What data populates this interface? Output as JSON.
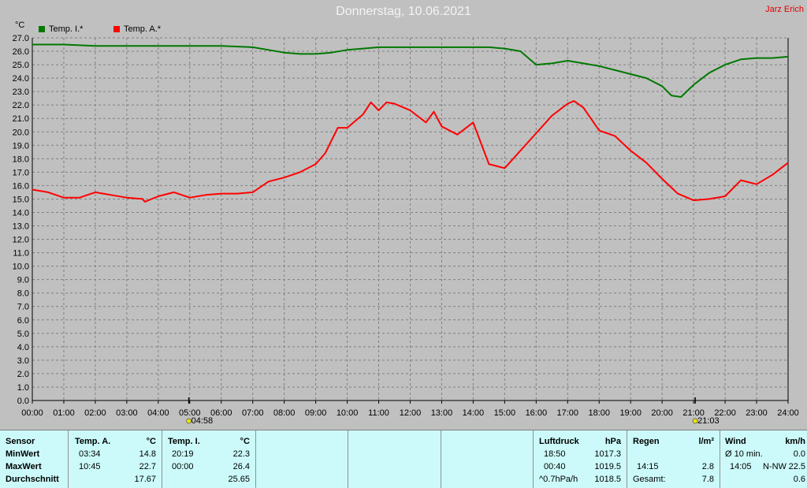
{
  "title": "Donnerstag, 10.06.2021",
  "author": "Jarz Erich",
  "colors": {
    "temp_i": "#007800",
    "temp_a": "#ff0000",
    "plot_bg": "#c0c0c0",
    "grid": "#808080",
    "panel": "#ccfafa"
  },
  "chart_data": {
    "type": "line",
    "unit_label": "°C",
    "ylim": [
      0,
      27
    ],
    "y_ticks": [
      "0.0",
      "1.0",
      "2.0",
      "3.0",
      "4.0",
      "5.0",
      "6.0",
      "7.0",
      "8.0",
      "9.0",
      "10.0",
      "11.0",
      "12.0",
      "13.0",
      "14.0",
      "15.0",
      "16.0",
      "17.0",
      "18.0",
      "19.0",
      "20.0",
      "21.0",
      "22.0",
      "23.0",
      "24.0",
      "25.0",
      "26.0",
      "27.0"
    ],
    "x_ticks": [
      "00:00",
      "01:00",
      "02:00",
      "03:00",
      "04:00",
      "05:00",
      "06:00",
      "07:00",
      "08:00",
      "09:00",
      "10:00",
      "11:00",
      "12:00",
      "13:00",
      "14:00",
      "15:00",
      "16:00",
      "17:00",
      "18:00",
      "19:00",
      "20:00",
      "21:00",
      "22:00",
      "23:00",
      "24:00"
    ],
    "grid": true,
    "legend_position": "top-left",
    "markers": [
      {
        "label": "04:58",
        "hour": 4.97,
        "icon": "sunrise-icon"
      },
      {
        "label": "21:03",
        "hour": 21.05,
        "icon": "sunset-icon"
      }
    ],
    "series": [
      {
        "name": "Temp. I.*",
        "x": [
          0,
          1,
          2,
          3,
          4,
          5,
          6,
          7,
          7.5,
          8,
          8.5,
          9,
          9.5,
          10,
          10.5,
          11,
          11.5,
          12,
          12.5,
          13,
          13.5,
          14,
          14.5,
          15,
          15.5,
          16,
          16.5,
          17,
          17.5,
          18,
          18.5,
          19,
          19.5,
          20,
          20.3,
          20.6,
          21,
          21.5,
          22,
          22.5,
          23,
          23.5,
          24
        ],
        "y": [
          26.5,
          26.5,
          26.4,
          26.4,
          26.4,
          26.4,
          26.4,
          26.3,
          26.1,
          25.9,
          25.8,
          25.8,
          25.9,
          26.1,
          26.2,
          26.3,
          26.3,
          26.3,
          26.3,
          26.3,
          26.3,
          26.3,
          26.3,
          26.2,
          26.0,
          25.0,
          25.1,
          25.3,
          25.1,
          24.9,
          24.6,
          24.3,
          24.0,
          23.4,
          22.7,
          22.6,
          23.5,
          24.4,
          25.0,
          25.4,
          25.5,
          25.5,
          25.6
        ]
      },
      {
        "name": "Temp. A.*",
        "x": [
          0,
          0.5,
          1,
          1.5,
          2,
          2.5,
          3,
          3.5,
          3.57,
          4,
          4.5,
          5,
          5.5,
          6,
          6.5,
          7,
          7.5,
          8,
          8.5,
          9,
          9.3,
          9.7,
          10,
          10.5,
          10.75,
          11,
          11.25,
          11.5,
          12,
          12.5,
          12.75,
          13,
          13.5,
          14,
          14.5,
          15,
          15.5,
          16,
          16.5,
          17,
          17.2,
          17.5,
          18,
          18.5,
          19,
          19.5,
          20,
          20.5,
          21,
          21.5,
          22,
          22.5,
          23,
          23.5,
          24
        ],
        "y": [
          15.7,
          15.5,
          15.1,
          15.1,
          15.5,
          15.3,
          15.1,
          15.0,
          14.8,
          15.2,
          15.5,
          15.1,
          15.3,
          15.4,
          15.4,
          15.5,
          16.3,
          16.6,
          17.0,
          17.6,
          18.4,
          20.3,
          20.3,
          21.3,
          22.2,
          21.6,
          22.2,
          22.1,
          21.6,
          20.7,
          21.5,
          20.4,
          19.8,
          20.7,
          17.6,
          17.3,
          18.6,
          19.9,
          21.2,
          22.1,
          22.3,
          21.8,
          20.1,
          19.7,
          18.6,
          17.7,
          16.5,
          15.4,
          14.9,
          15.0,
          15.2,
          16.4,
          16.1,
          16.8,
          17.7
        ]
      }
    ]
  },
  "stats": {
    "sensor": {
      "header": "Sensor",
      "min": "MinWert",
      "max": "MaxWert",
      "avg": "Durchschnitt"
    },
    "temp_a": {
      "header": "Temp. A.",
      "unit": "°C",
      "min_time": "03:34",
      "min_val": "14.8",
      "max_time": "10:45",
      "max_val": "22.7",
      "avg": "17.67"
    },
    "temp_i": {
      "header": "Temp. I.",
      "unit": "°C",
      "min_time": "20:19",
      "min_val": "22.3",
      "max_time": "00:00",
      "max_val": "26.4",
      "avg": "25.65"
    },
    "pressure": {
      "header": "Luftdruck",
      "unit": "hPa",
      "min_time": "18:50",
      "min_val": "1017.3",
      "max_time": "00:40",
      "max_val": "1019.5",
      "trend_label": "^0.7hPa/h",
      "trend_val": "1018.5"
    },
    "rain": {
      "header": "Regen",
      "unit": "l/m²",
      "max_time": "14:15",
      "max_val": "2.8",
      "total_label": "Gesamt:",
      "total_val": "7.8"
    },
    "wind": {
      "header": "Wind",
      "unit": "km/h",
      "avg_label": "Ø 10 min.",
      "avg_val": "0.0",
      "max_time": "14:05",
      "max_dir": "N-NW",
      "max_val": "22.5",
      "last_val": "0.6"
    }
  }
}
